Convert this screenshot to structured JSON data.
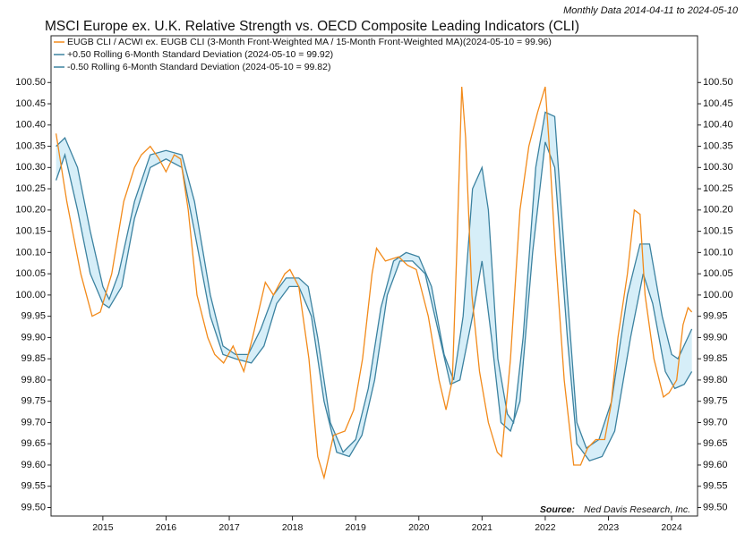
{
  "chart_data": {
    "type": "line",
    "title": "MSCI Europe ex. U.K. Relative Strength vs. OECD Composite Leading Indicators (CLI)",
    "subtitle": "Monthly Data 2014-04-11 to 2024-05-10",
    "source_label": "Source:",
    "source": "Ned Davis Research, Inc.",
    "xlim": [
      2014.18,
      2024.41
    ],
    "xticks": [
      2015,
      2016,
      2017,
      2018,
      2019,
      2020,
      2021,
      2022,
      2023,
      2024
    ],
    "ylim": [
      99.48,
      100.61
    ],
    "yticks": [
      {
        "value": 99.5,
        "label": "99.50"
      },
      {
        "value": 99.55,
        "label": "99.55"
      },
      {
        "value": 99.6,
        "label": "99.60"
      },
      {
        "value": 99.65,
        "label": "99.65"
      },
      {
        "value": 99.7,
        "label": "99.70"
      },
      {
        "value": 99.75,
        "label": "99.75"
      },
      {
        "value": 99.8,
        "label": "99.80"
      },
      {
        "value": 99.85,
        "label": "99.85"
      },
      {
        "value": 99.9,
        "label": "99.90"
      },
      {
        "value": 99.95,
        "label": "99.95"
      },
      {
        "value": 100.0,
        "label": "100.00"
      },
      {
        "value": 100.05,
        "label": "100.05"
      },
      {
        "value": 100.1,
        "label": "100.10"
      },
      {
        "value": 100.15,
        "label": "100.15"
      },
      {
        "value": 100.2,
        "label": "100.20"
      },
      {
        "value": 100.25,
        "label": "100.25"
      },
      {
        "value": 100.3,
        "label": "100.30"
      },
      {
        "value": 100.35,
        "label": "100.35"
      },
      {
        "value": 100.4,
        "label": "100.40"
      },
      {
        "value": 100.45,
        "label": "100.45"
      },
      {
        "value": 100.5,
        "label": "100.50"
      }
    ],
    "band_color": "#d6eef8",
    "series": [
      {
        "name": "EUGB CLI / ACWI ex. EUGB CLI (3-Month Front-Weighted MA / 15-Month Front-Weighted MA)(2024-05-10 = 99.96)",
        "color": "#f28a1a",
        "x": [
          2014.26,
          2014.43,
          2014.65,
          2014.83,
          2014.96,
          2015.14,
          2015.33,
          2015.5,
          2015.61,
          2015.75,
          2015.89,
          2016.0,
          2016.13,
          2016.23,
          2016.35,
          2016.49,
          2016.66,
          2016.77,
          2016.91,
          2017.06,
          2017.23,
          2017.37,
          2017.57,
          2017.7,
          2017.88,
          2017.96,
          2018.1,
          2018.26,
          2018.4,
          2018.5,
          2018.65,
          2018.83,
          2018.97,
          2019.11,
          2019.26,
          2019.33,
          2019.47,
          2019.68,
          2019.82,
          2019.96,
          2020.15,
          2020.32,
          2020.43,
          2020.53,
          2020.6,
          2020.68,
          2020.74,
          2020.84,
          2020.96,
          2021.1,
          2021.24,
          2021.31,
          2021.45,
          2021.6,
          2021.74,
          2021.88,
          2022.0,
          2022.06,
          2022.16,
          2022.3,
          2022.45,
          2022.56,
          2022.67,
          2022.8,
          2022.94,
          2023.04,
          2023.15,
          2023.3,
          2023.41,
          2023.5,
          2023.58,
          2023.72,
          2023.87,
          2023.96,
          2024.08,
          2024.18,
          2024.26,
          2024.32
        ],
        "values": [
          100.38,
          100.22,
          100.05,
          99.95,
          99.96,
          100.05,
          100.22,
          100.3,
          100.33,
          100.35,
          100.32,
          100.29,
          100.33,
          100.32,
          100.2,
          100.0,
          99.9,
          99.86,
          99.84,
          99.88,
          99.82,
          99.9,
          100.03,
          100.0,
          100.05,
          100.06,
          100.02,
          99.85,
          99.62,
          99.57,
          99.67,
          99.68,
          99.73,
          99.85,
          100.05,
          100.11,
          100.08,
          100.09,
          100.07,
          100.06,
          99.95,
          99.8,
          99.73,
          99.8,
          100.1,
          100.49,
          100.37,
          100.0,
          99.82,
          99.7,
          99.63,
          99.62,
          99.85,
          100.2,
          100.35,
          100.43,
          100.49,
          100.36,
          100.1,
          99.8,
          99.6,
          99.6,
          99.64,
          99.66,
          99.66,
          99.74,
          99.9,
          100.05,
          100.2,
          100.19,
          100.0,
          99.85,
          99.76,
          99.77,
          99.8,
          99.93,
          99.97,
          99.96
        ]
      },
      {
        "name": "+0.50 Rolling 6-Month Standard Deviation (2024-05-10 = 99.92)",
        "color": "#3c82a0",
        "x": [
          2014.26,
          2014.4,
          2014.6,
          2014.8,
          2015.0,
          2015.1,
          2015.25,
          2015.5,
          2015.75,
          2016.0,
          2016.25,
          2016.45,
          2016.7,
          2016.9,
          2017.1,
          2017.3,
          2017.5,
          2017.7,
          2017.9,
          2018.1,
          2018.25,
          2018.4,
          2018.6,
          2018.8,
          2019.0,
          2019.2,
          2019.4,
          2019.6,
          2019.8,
          2020.0,
          2020.2,
          2020.4,
          2020.55,
          2020.7,
          2020.85,
          2021.0,
          2021.1,
          2021.25,
          2021.4,
          2021.5,
          2021.65,
          2021.85,
          2022.0,
          2022.15,
          2022.35,
          2022.5,
          2022.65,
          2022.85,
          2023.05,
          2023.3,
          2023.5,
          2023.65,
          2023.85,
          2024.0,
          2024.1,
          2024.32
        ],
        "values": [
          100.35,
          100.37,
          100.3,
          100.15,
          100.02,
          99.99,
          100.05,
          100.22,
          100.33,
          100.34,
          100.33,
          100.22,
          100.0,
          99.88,
          99.86,
          99.86,
          99.92,
          100.0,
          100.04,
          100.04,
          100.02,
          99.9,
          99.7,
          99.63,
          99.66,
          99.78,
          99.97,
          100.08,
          100.1,
          100.09,
          100.02,
          99.86,
          99.8,
          99.95,
          100.25,
          100.3,
          100.2,
          99.85,
          99.72,
          99.7,
          99.9,
          100.3,
          100.43,
          100.42,
          100.0,
          99.7,
          99.64,
          99.66,
          99.75,
          100.0,
          100.12,
          100.12,
          99.95,
          99.86,
          99.85,
          99.92
        ]
      },
      {
        "name": "-0.50 Rolling 6-Month Standard Deviation (2024-05-10 = 99.82)",
        "color": "#3c82a0",
        "x": [
          2014.26,
          2014.4,
          2014.6,
          2014.8,
          2015.0,
          2015.1,
          2015.3,
          2015.5,
          2015.75,
          2016.0,
          2016.25,
          2016.45,
          2016.7,
          2016.9,
          2017.1,
          2017.35,
          2017.55,
          2017.75,
          2017.95,
          2018.1,
          2018.3,
          2018.5,
          2018.7,
          2018.9,
          2019.1,
          2019.3,
          2019.5,
          2019.7,
          2019.9,
          2020.1,
          2020.3,
          2020.5,
          2020.65,
          2020.85,
          2021.0,
          2021.15,
          2021.3,
          2021.45,
          2021.6,
          2021.8,
          2022.0,
          2022.15,
          2022.35,
          2022.5,
          2022.7,
          2022.9,
          2023.1,
          2023.35,
          2023.55,
          2023.7,
          2023.9,
          2024.05,
          2024.2,
          2024.32
        ],
        "values": [
          100.27,
          100.33,
          100.2,
          100.05,
          99.98,
          99.97,
          100.02,
          100.18,
          100.3,
          100.32,
          100.3,
          100.15,
          99.95,
          99.86,
          99.85,
          99.84,
          99.88,
          99.98,
          100.02,
          100.02,
          99.95,
          99.75,
          99.63,
          99.62,
          99.67,
          99.8,
          100.0,
          100.08,
          100.08,
          100.05,
          99.92,
          99.79,
          99.8,
          99.95,
          100.08,
          99.9,
          99.7,
          99.68,
          99.75,
          100.1,
          100.36,
          100.3,
          99.9,
          99.65,
          99.61,
          99.62,
          99.68,
          99.9,
          100.05,
          99.98,
          99.82,
          99.78,
          99.79,
          99.82
        ]
      }
    ]
  }
}
